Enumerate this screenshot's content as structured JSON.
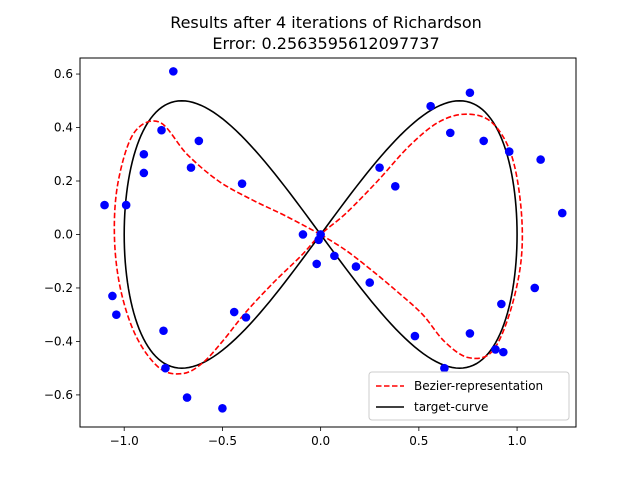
{
  "chart_data": {
    "type": "scatter",
    "title": "Results after 4 iterations of Richardson",
    "subtitle": "Error: 0.2563595612097737",
    "xlim": [
      -1.225,
      1.3
    ],
    "ylim": [
      -0.72,
      0.66
    ],
    "xticks": [
      -1.0,
      -0.5,
      0.0,
      0.5,
      1.0
    ],
    "yticks": [
      -0.6,
      -0.4,
      -0.2,
      0.0,
      0.2,
      0.4,
      0.6
    ],
    "xtick_labels": [
      "−1.0",
      "−0.5",
      "0.0",
      "0.5",
      "1.0"
    ],
    "ytick_labels": [
      "−0.6",
      "−0.4",
      "−0.2",
      "0.0",
      "0.2",
      "0.4",
      "0.6"
    ],
    "grid": false,
    "legend_position": "lower right",
    "colors": {
      "points": "#0000ff",
      "bezier": "#ff0000",
      "target": "#000000"
    },
    "points": {
      "x": [
        -0.75,
        -1.1,
        -0.99,
        -1.06,
        -1.04,
        -0.9,
        -0.9,
        -0.81,
        -0.8,
        -0.79,
        -0.68,
        -0.66,
        -0.62,
        -0.5,
        -0.44,
        -0.4,
        -0.38,
        -0.09,
        -0.02,
        -0.01,
        0.0,
        0.07,
        0.18,
        0.25,
        0.3,
        0.38,
        0.48,
        0.56,
        0.63,
        0.66,
        0.76,
        0.76,
        0.83,
        0.89,
        0.92,
        0.93,
        0.96,
        1.09,
        1.12,
        1.23
      ],
      "y": [
        0.61,
        0.11,
        0.11,
        -0.23,
        -0.3,
        0.3,
        0.23,
        0.39,
        -0.36,
        -0.5,
        -0.61,
        0.25,
        0.35,
        -0.65,
        -0.29,
        0.19,
        -0.31,
        0.0,
        -0.11,
        -0.02,
        0.0,
        -0.08,
        -0.12,
        -0.18,
        0.25,
        0.18,
        -0.38,
        0.48,
        -0.5,
        0.38,
        0.53,
        -0.37,
        0.35,
        -0.43,
        -0.26,
        -0.44,
        0.31,
        -0.2,
        0.28,
        0.08
      ]
    },
    "series": [
      {
        "name": "Bezier-representation",
        "style": "dashed",
        "color": "#ff0000"
      },
      {
        "name": "target-curve",
        "style": "solid",
        "color": "#000000"
      }
    ],
    "bezier_curve": {
      "x": [
        0.0,
        -0.18,
        -0.35,
        -0.52,
        -0.68,
        -0.82,
        -0.95,
        -1.03,
        -1.05,
        -1.02,
        -0.94,
        -0.82,
        -0.7,
        -0.6,
        -0.5,
        -0.38,
        -0.24,
        -0.1,
        0.0,
        0.13,
        0.29,
        0.45,
        0.6,
        0.74,
        0.87,
        0.97,
        1.02,
        1.02,
        0.96,
        0.87,
        0.75,
        0.63,
        0.52,
        0.4,
        0.27,
        0.13,
        0.0
      ],
      "y": [
        0.0,
        0.07,
        0.13,
        0.2,
        0.3,
        0.42,
        0.38,
        0.2,
        0.0,
        -0.2,
        -0.38,
        -0.5,
        -0.52,
        -0.48,
        -0.4,
        -0.29,
        -0.18,
        -0.08,
        0.0,
        0.08,
        0.2,
        0.33,
        0.42,
        0.45,
        0.42,
        0.3,
        0.1,
        -0.1,
        -0.3,
        -0.44,
        -0.46,
        -0.4,
        -0.3,
        -0.22,
        -0.14,
        -0.06,
        0.0
      ]
    },
    "target_curve": {
      "t_samples": 240,
      "amplitude": 1.0
    }
  }
}
